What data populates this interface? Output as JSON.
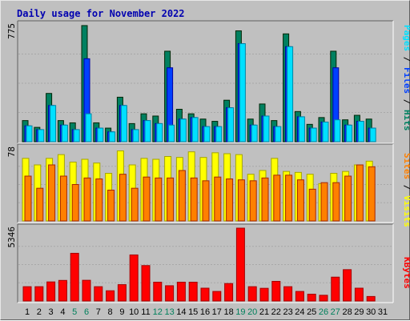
{
  "title": "Daily usage for November 2022",
  "chart_data": [
    {
      "type": "bar",
      "panel": "hits-files-pages",
      "ymax_label": "775",
      "ylim": [
        0,
        775
      ],
      "categories": [
        "1",
        "2",
        "3",
        "4",
        "5",
        "6",
        "7",
        "8",
        "9",
        "10",
        "11",
        "12",
        "13",
        "14",
        "15",
        "16",
        "17",
        "18",
        "19",
        "20",
        "21",
        "22",
        "23",
        "24",
        "25",
        "26",
        "27",
        "28",
        "29",
        "30",
        "31"
      ],
      "series": [
        {
          "name": "Hits",
          "color": "#008060",
          "values": [
            140,
            95,
            320,
            140,
            125,
            770,
            125,
            90,
            295,
            120,
            185,
            170,
            600,
            215,
            185,
            150,
            135,
            275,
            735,
            150,
            250,
            140,
            715,
            200,
            115,
            160,
            600,
            145,
            175,
            150,
            0
          ]
        },
        {
          "name": "Files",
          "color": "#0040ff",
          "values": [
            105,
            80,
            240,
            110,
            80,
            550,
            90,
            65,
            240,
            80,
            140,
            120,
            490,
            150,
            160,
            100,
            100,
            225,
            650,
            110,
            170,
            100,
            630,
            165,
            90,
            130,
            490,
            110,
            135,
            90,
            0
          ]
        },
        {
          "name": "Pages",
          "color": "#00e0ff",
          "values": [
            105,
            80,
            240,
            110,
            80,
            185,
            90,
            65,
            240,
            80,
            140,
            120,
            110,
            150,
            160,
            100,
            100,
            225,
            650,
            110,
            170,
            100,
            630,
            165,
            90,
            130,
            145,
            110,
            135,
            90,
            0
          ]
        }
      ]
    },
    {
      "type": "bar",
      "panel": "visits-sites",
      "ymax_label": "78",
      "ylim": [
        0,
        78
      ],
      "categories": [
        "1",
        "2",
        "3",
        "4",
        "5",
        "6",
        "7",
        "8",
        "9",
        "10",
        "11",
        "12",
        "13",
        "14",
        "15",
        "16",
        "17",
        "18",
        "19",
        "20",
        "21",
        "22",
        "23",
        "24",
        "25",
        "26",
        "27",
        "28",
        "29",
        "30",
        "31"
      ],
      "series": [
        {
          "name": "Visits",
          "color": "#ffff00",
          "values": [
            67,
            60,
            67,
            71,
            63,
            66,
            62,
            51,
            75,
            60,
            67,
            66,
            69,
            68,
            74,
            68,
            73,
            72,
            71,
            50,
            54,
            67,
            53,
            52,
            50,
            40,
            51,
            53,
            60,
            64,
            0
          ]
        },
        {
          "name": "Sites",
          "color": "#ff8000",
          "values": [
            48,
            35,
            60,
            48,
            39,
            46,
            45,
            33,
            50,
            35,
            47,
            46,
            46,
            54,
            46,
            43,
            47,
            45,
            44,
            43,
            46,
            49,
            49,
            44,
            34,
            41,
            41,
            48,
            60,
            58,
            0
          ]
        }
      ]
    },
    {
      "type": "bar",
      "panel": "kbytes",
      "ymax_label": "5346",
      "ylim": [
        0,
        5346
      ],
      "categories": [
        "1",
        "2",
        "3",
        "4",
        "5",
        "6",
        "7",
        "8",
        "9",
        "10",
        "11",
        "12",
        "13",
        "14",
        "15",
        "16",
        "17",
        "18",
        "19",
        "20",
        "21",
        "22",
        "23",
        "24",
        "25",
        "26",
        "27",
        "28",
        "29",
        "30",
        "31"
      ],
      "series": [
        {
          "name": "KBytes",
          "color": "#ff0000",
          "values": [
            1050,
            1050,
            1400,
            1510,
            3500,
            1520,
            1050,
            750,
            1200,
            3380,
            2600,
            1380,
            1120,
            1380,
            1380,
            940,
            700,
            1280,
            5346,
            1050,
            930,
            1440,
            1050,
            700,
            500,
            420,
            1750,
            2300,
            940,
            330,
            0
          ]
        }
      ]
    }
  ],
  "side_labels": {
    "hits_panel": [
      {
        "text": "Pages",
        "color": "#00e0ff"
      },
      {
        "text": " / ",
        "color": "#000000"
      },
      {
        "text": "Files",
        "color": "#0040ff"
      },
      {
        "text": " / ",
        "color": "#000000"
      },
      {
        "text": "Hits",
        "color": "#008060"
      }
    ],
    "visits_panel": [
      {
        "text": "Sites",
        "color": "#ff8000"
      },
      {
        "text": " / ",
        "color": "#000000"
      },
      {
        "text": "Visits",
        "color": "#ffff00"
      }
    ],
    "kbytes_panel": [
      {
        "text": "KBytes",
        "color": "#ff0000"
      }
    ]
  },
  "day_labels": {
    "days": [
      "1",
      "2",
      "3",
      "4",
      "5",
      "6",
      "7",
      "8",
      "9",
      "10",
      "11",
      "12",
      "13",
      "14",
      "15",
      "16",
      "17",
      "18",
      "19",
      "20",
      "21",
      "22",
      "23",
      "24",
      "25",
      "26",
      "27",
      "28",
      "29",
      "30",
      "31"
    ],
    "weekend_days": [
      "5",
      "6",
      "12",
      "13",
      "19",
      "20",
      "26",
      "27"
    ],
    "weekday_color": "#000000",
    "weekend_color": "#00805c"
  }
}
